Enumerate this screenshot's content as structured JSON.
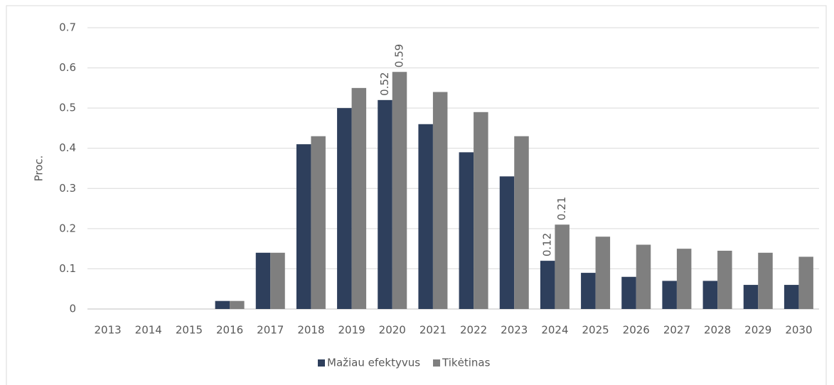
{
  "chart_data": {
    "type": "bar",
    "y_label": "Proc.",
    "categories": [
      "2013",
      "2014",
      "2015",
      "2016",
      "2017",
      "2018",
      "2019",
      "2020",
      "2021",
      "2022",
      "2023",
      "2024",
      "2025",
      "2026",
      "2027",
      "2028",
      "2029",
      "2030"
    ],
    "series": [
      {
        "name": "Mažiau efektyvus",
        "color": "#2e3f5c",
        "values": [
          0,
          0,
          0,
          0.02,
          0.14,
          0.41,
          0.5,
          0.52,
          0.46,
          0.39,
          0.33,
          0.12,
          0.09,
          0.08,
          0.07,
          0.07,
          0.06,
          0.06
        ],
        "value_labels": [
          null,
          null,
          null,
          null,
          null,
          null,
          null,
          "0.52",
          null,
          null,
          null,
          "0.12",
          null,
          null,
          null,
          null,
          null,
          null
        ]
      },
      {
        "name": "Tikėtinas",
        "color": "#7f7f7f",
        "values": [
          0,
          0,
          0,
          0.02,
          0.14,
          0.43,
          0.55,
          0.59,
          0.54,
          0.49,
          0.43,
          0.21,
          0.18,
          0.16,
          0.15,
          0.145,
          0.14,
          0.13
        ],
        "value_labels": [
          null,
          null,
          null,
          null,
          null,
          null,
          null,
          "0.59",
          null,
          null,
          null,
          "0.21",
          null,
          null,
          null,
          null,
          null,
          null
        ]
      }
    ],
    "ylim": [
      0,
      0.7
    ],
    "yticks": [
      0,
      0.1,
      0.2,
      0.3,
      0.4,
      0.5,
      0.6,
      0.7
    ],
    "grid": true,
    "legend": "bottom"
  }
}
